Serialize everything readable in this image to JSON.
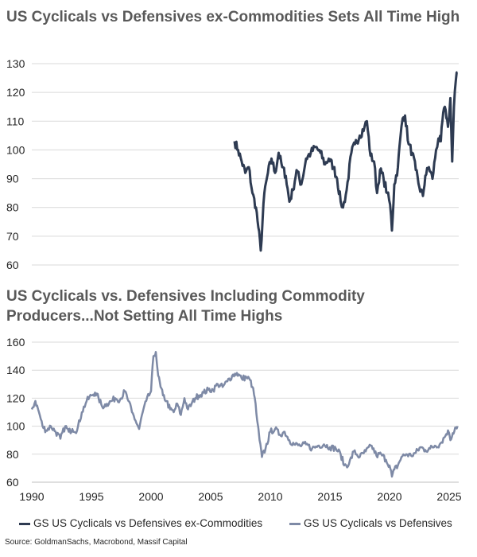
{
  "chart_data": [
    {
      "type": "line",
      "title": "US Cyclicals vs Defensives ex-Commodities Sets All Time High",
      "ylim": [
        60,
        130
      ],
      "y_ticks": [
        60,
        70,
        80,
        90,
        100,
        110,
        120,
        130
      ],
      "grid": true,
      "series": [
        {
          "name": "GS US Cyclicals vs Defensives ex-Commodities",
          "color": "#2e3b52",
          "x": [
            2007.0,
            2007.3,
            2007.6,
            2007.9,
            2008.2,
            2008.5,
            2008.8,
            2009.0,
            2009.2,
            2009.5,
            2009.8,
            2010.1,
            2010.4,
            2010.7,
            2011.0,
            2011.3,
            2011.6,
            2011.9,
            2012.2,
            2012.6,
            2013.0,
            2013.4,
            2013.8,
            2014.2,
            2014.6,
            2014.9,
            2015.3,
            2015.6,
            2015.9,
            2016.1,
            2016.4,
            2016.8,
            2017.1,
            2017.5,
            2017.9,
            2018.1,
            2018.4,
            2018.7,
            2018.95,
            2019.2,
            2019.5,
            2019.8,
            2020.05,
            2020.2,
            2020.4,
            2020.7,
            2020.9,
            2021.1,
            2021.3,
            2021.6,
            2021.9,
            2022.2,
            2022.5,
            2022.8,
            2023.0,
            2023.3,
            2023.6,
            2023.9,
            2024.1,
            2024.3,
            2024.5,
            2024.7,
            2024.9,
            2025.1,
            2025.25,
            2025.4,
            2025.55,
            2025.7
          ],
          "values": [
            103,
            100,
            96,
            92,
            94,
            85,
            80,
            73,
            65,
            85,
            92,
            97,
            92,
            99,
            94,
            91,
            82,
            86,
            93,
            88,
            97,
            99,
            101,
            99,
            95,
            97,
            94,
            90,
            82,
            80,
            86,
            99,
            102,
            105,
            108,
            110,
            98,
            96,
            85,
            93,
            90,
            85,
            81,
            72,
            88,
            94,
            104,
            111,
            112,
            102,
            99,
            93,
            87,
            84,
            91,
            94,
            90,
            100,
            104,
            103,
            113,
            114,
            108,
            118,
            96,
            115,
            124,
            127
          ]
        }
      ]
    },
    {
      "type": "line",
      "title": "US Cyclicals vs. Defensives Including Commodity Producers...Not Setting All Time Highs",
      "ylim": [
        60,
        160
      ],
      "y_ticks": [
        60,
        80,
        100,
        120,
        140,
        160
      ],
      "xlim": [
        1990,
        2025.8
      ],
      "x_ticks": [
        1990,
        1995,
        2000,
        2005,
        2010,
        2015,
        2020,
        2025
      ],
      "grid": true,
      "series": [
        {
          "name": "GS US Cyclicals vs Defensives",
          "color": "#7e8aa6",
          "x": [
            1990.0,
            1990.3,
            1990.6,
            1990.9,
            1991.2,
            1991.6,
            1992.0,
            1992.4,
            1992.8,
            1993.1,
            1993.4,
            1993.8,
            1994.2,
            1994.6,
            1995.0,
            1995.3,
            1995.6,
            1995.9,
            1996.3,
            1996.7,
            1997.0,
            1997.4,
            1997.8,
            1998.1,
            1998.4,
            1998.7,
            1999.0,
            1999.3,
            1999.6,
            2000.0,
            2000.2,
            2000.4,
            2000.6,
            2000.8,
            2001.0,
            2001.3,
            2001.6,
            2001.9,
            2002.2,
            2002.5,
            2002.8,
            2003.1,
            2003.4,
            2003.7,
            2004.0,
            2004.4,
            2004.8,
            2005.2,
            2005.6,
            2006.0,
            2006.4,
            2006.8,
            2007.2,
            2007.6,
            2008.0,
            2008.3,
            2008.5,
            2008.7,
            2008.9,
            2009.1,
            2009.3,
            2009.6,
            2010.0,
            2010.4,
            2010.8,
            2011.2,
            2011.6,
            2012.0,
            2012.5,
            2013.0,
            2013.5,
            2014.0,
            2014.5,
            2015.0,
            2015.5,
            2015.9,
            2016.2,
            2016.6,
            2017.0,
            2017.5,
            2018.0,
            2018.5,
            2018.9,
            2019.3,
            2019.7,
            2020.0,
            2020.2,
            2020.4,
            2020.7,
            2021.0,
            2021.4,
            2021.8,
            2022.2,
            2022.6,
            2023.0,
            2023.4,
            2023.8,
            2024.2,
            2024.6,
            2024.9,
            2025.1,
            2025.3,
            2025.5,
            2025.7
          ],
          "values": [
            112,
            118,
            110,
            100,
            97,
            100,
            96,
            91,
            100,
            96,
            98,
            97,
            110,
            118,
            122,
            124,
            120,
            114,
            116,
            118,
            120,
            119,
            125,
            118,
            110,
            104,
            98,
            110,
            118,
            125,
            150,
            153,
            136,
            128,
            122,
            118,
            112,
            110,
            116,
            108,
            120,
            112,
            116,
            120,
            122,
            124,
            126,
            126,
            130,
            128,
            132,
            136,
            138,
            134,
            135,
            133,
            128,
            120,
            104,
            90,
            78,
            84,
            96,
            98,
            94,
            96,
            90,
            87,
            86,
            87,
            84,
            86,
            87,
            85,
            84,
            80,
            72,
            73,
            82,
            78,
            82,
            86,
            79,
            80,
            76,
            72,
            64,
            69,
            72,
            78,
            80,
            79,
            81,
            85,
            83,
            84,
            86,
            87,
            92,
            97,
            90,
            95,
            99,
            100
          ]
        }
      ]
    }
  ],
  "legend": [
    {
      "label": "GS US Cyclicals vs Defensives ex-Commodities",
      "color": "#2e3b52"
    },
    {
      "label": "GS US Cyclicals vs Defensives",
      "color": "#7e8aa6"
    }
  ],
  "source": "Source: GoldmanSachs, Macrobond, Massif Capital"
}
